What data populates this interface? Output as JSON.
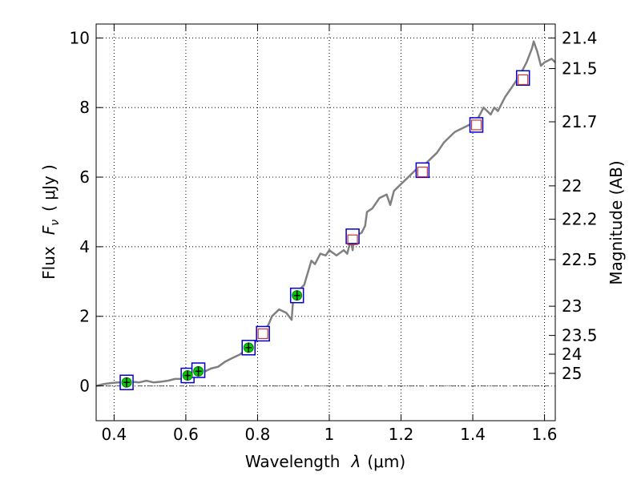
{
  "chart_data": {
    "type": "line",
    "title": "",
    "xlabel_prefix": "Wavelength",
    "xlabel_symbol": "λ",
    "xlabel_unit": "(μm)",
    "ylabel_prefix": "Flux",
    "ylabel_symbol": "F",
    "ylabel_subscript": "ν",
    "ylabel_unit": "(  μJy )",
    "y2label": "Magnitude (AB)",
    "xlim": [
      0.35,
      1.63
    ],
    "ylim": [
      -1,
      10.4
    ],
    "grid": true,
    "x_ticks": [
      0.4,
      0.6,
      0.8,
      1.0,
      1.2,
      1.4,
      1.6
    ],
    "x_tick_labels": [
      "0.4",
      "0.6",
      "0.8",
      "1",
      "1.2",
      "1.4",
      "1.6"
    ],
    "y_ticks": [
      0,
      2,
      4,
      6,
      8,
      10
    ],
    "y_tick_labels": [
      "0",
      "2",
      "4",
      "6",
      "8",
      "10"
    ],
    "y2_ticks": [
      {
        "label": "21.4",
        "flux": 10.0
      },
      {
        "label": "21.5",
        "flux": 9.12
      },
      {
        "label": "21.7",
        "flux": 7.59
      },
      {
        "label": "22",
        "flux": 5.75
      },
      {
        "label": "22.2",
        "flux": 4.79
      },
      {
        "label": "22.5",
        "flux": 3.63
      },
      {
        "label": "23",
        "flux": 2.29
      },
      {
        "label": "23.5",
        "flux": 1.45
      },
      {
        "label": "24",
        "flux": 0.91
      },
      {
        "label": "25",
        "flux": 0.36
      }
    ],
    "zero_line": 0,
    "spectrum": {
      "name": "model spectrum",
      "color": "#808080",
      "x": [
        0.35,
        0.37,
        0.39,
        0.41,
        0.43,
        0.45,
        0.47,
        0.49,
        0.51,
        0.53,
        0.55,
        0.57,
        0.59,
        0.61,
        0.63,
        0.65,
        0.67,
        0.69,
        0.71,
        0.73,
        0.75,
        0.77,
        0.79,
        0.81,
        0.83,
        0.84,
        0.86,
        0.88,
        0.895,
        0.9,
        0.91,
        0.93,
        0.95,
        0.96,
        0.975,
        0.99,
        1.0,
        1.02,
        1.04,
        1.05,
        1.06,
        1.065,
        1.07,
        1.09,
        1.1,
        1.105,
        1.12,
        1.14,
        1.16,
        1.17,
        1.18,
        1.2,
        1.22,
        1.24,
        1.26,
        1.28,
        1.3,
        1.32,
        1.34,
        1.35,
        1.37,
        1.39,
        1.41,
        1.43,
        1.45,
        1.46,
        1.47,
        1.49,
        1.51,
        1.53,
        1.55,
        1.565,
        1.57,
        1.58,
        1.59,
        1.6,
        1.62,
        1.63
      ],
      "y": [
        0.0,
        0.05,
        0.08,
        0.1,
        0.1,
        0.12,
        0.1,
        0.15,
        0.1,
        0.12,
        0.15,
        0.2,
        0.2,
        0.28,
        0.35,
        0.4,
        0.5,
        0.55,
        0.7,
        0.8,
        0.9,
        1.05,
        1.2,
        1.5,
        1.75,
        2.0,
        2.2,
        2.1,
        1.9,
        2.6,
        2.7,
        2.9,
        3.6,
        3.5,
        3.8,
        3.75,
        3.9,
        3.75,
        3.9,
        3.8,
        4.2,
        3.9,
        4.3,
        4.4,
        4.6,
        5.0,
        5.1,
        5.4,
        5.5,
        5.2,
        5.6,
        5.8,
        6.0,
        6.2,
        6.3,
        6.5,
        6.7,
        7.0,
        7.2,
        7.3,
        7.4,
        7.5,
        7.6,
        8.0,
        7.8,
        8.0,
        7.9,
        8.3,
        8.6,
        8.9,
        9.3,
        9.7,
        9.9,
        9.6,
        9.2,
        9.3,
        9.4,
        9.3
      ]
    },
    "model_points": {
      "name": "model photometry",
      "color": "#0000cc",
      "x": [
        0.435,
        0.605,
        0.635,
        0.775,
        0.815,
        0.91,
        1.065,
        1.26,
        1.41,
        1.54
      ],
      "y": [
        0.1,
        0.3,
        0.45,
        1.1,
        1.5,
        2.6,
        4.3,
        6.2,
        7.5,
        8.85
      ]
    },
    "observed_points": {
      "name": "observed photometry",
      "color": "#00cc00",
      "x": [
        0.435,
        0.605,
        0.635,
        0.775,
        0.91
      ],
      "y": [
        0.1,
        0.3,
        0.42,
        1.1,
        2.6
      ]
    },
    "upper_limits": {
      "name": "near-IR points",
      "color": "#cc3333",
      "x": [
        0.815,
        1.065,
        1.26,
        1.41,
        1.54
      ],
      "y": [
        1.5,
        4.2,
        6.15,
        7.5,
        8.8
      ]
    }
  }
}
